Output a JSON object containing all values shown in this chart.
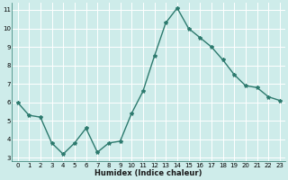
{
  "x": [
    0,
    1,
    2,
    3,
    4,
    5,
    6,
    7,
    8,
    9,
    10,
    11,
    12,
    13,
    14,
    15,
    16,
    17,
    18,
    19,
    20,
    21,
    22,
    23
  ],
  "y": [
    6.0,
    5.3,
    5.2,
    3.8,
    3.2,
    3.8,
    4.6,
    3.3,
    3.8,
    3.9,
    5.4,
    6.6,
    8.5,
    10.3,
    11.1,
    10.0,
    9.5,
    9.0,
    8.3,
    7.5,
    6.9,
    6.8,
    6.3,
    6.1
  ],
  "xlabel": "Humidex (Indice chaleur)",
  "ylim_min": 2.8,
  "ylim_max": 11.4,
  "xlim_min": -0.5,
  "xlim_max": 23.5,
  "yticks": [
    3,
    4,
    5,
    6,
    7,
    8,
    9,
    10,
    11
  ],
  "xticks": [
    0,
    1,
    2,
    3,
    4,
    5,
    6,
    7,
    8,
    9,
    10,
    11,
    12,
    13,
    14,
    15,
    16,
    17,
    18,
    19,
    20,
    21,
    22,
    23
  ],
  "line_color": "#2d7a6e",
  "marker": "*",
  "marker_size": 3.0,
  "bg_color": "#ceecea",
  "grid_color": "#ffffff",
  "tick_fontsize": 5.0,
  "xlabel_fontsize": 6.0,
  "linewidth": 1.0
}
